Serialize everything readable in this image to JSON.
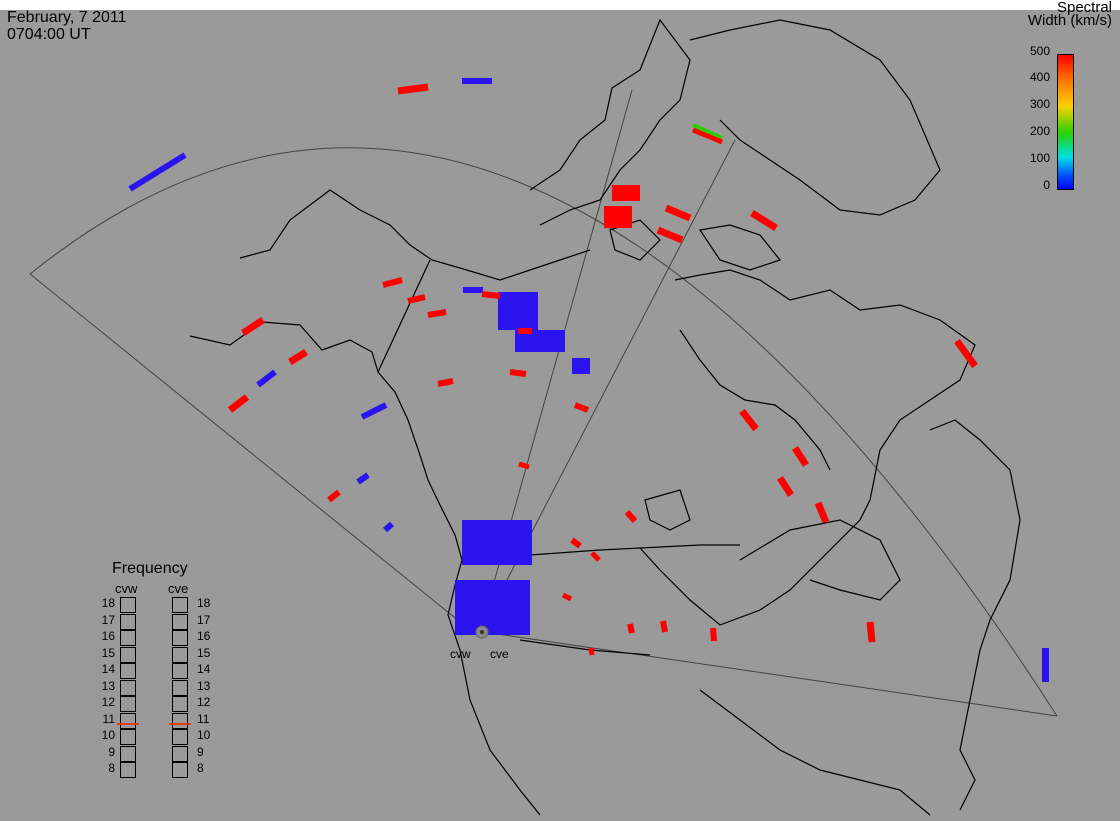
{
  "header": {
    "date": "February, 7 2011",
    "time": "0704:00 UT"
  },
  "color_scale": {
    "title_line1": "Spectral",
    "title_line2": "Width (km/s)",
    "ticks": [
      "500",
      "400",
      "300",
      "200",
      "100",
      "0"
    ],
    "gradient_colors": [
      "#ff0000",
      "#ff7a00",
      "#ffd000",
      "#28d000",
      "#00e0e0",
      "#0050ff",
      "#0000ff"
    ]
  },
  "frequency": {
    "title": "Frequency",
    "radars": [
      {
        "name": "cvw",
        "selected": "11"
      },
      {
        "name": "cve",
        "selected": "11"
      }
    ],
    "levels": [
      "18",
      "17",
      "16",
      "15",
      "14",
      "13",
      "12",
      "11",
      "10",
      "9",
      "8"
    ]
  },
  "radar_labels": {
    "west": "cvw",
    "east": "cve"
  },
  "colors": {
    "background": "#9a9a9a",
    "coast": "#000000",
    "low_width": "#2b14f0",
    "high_width": "#ff0000"
  }
}
